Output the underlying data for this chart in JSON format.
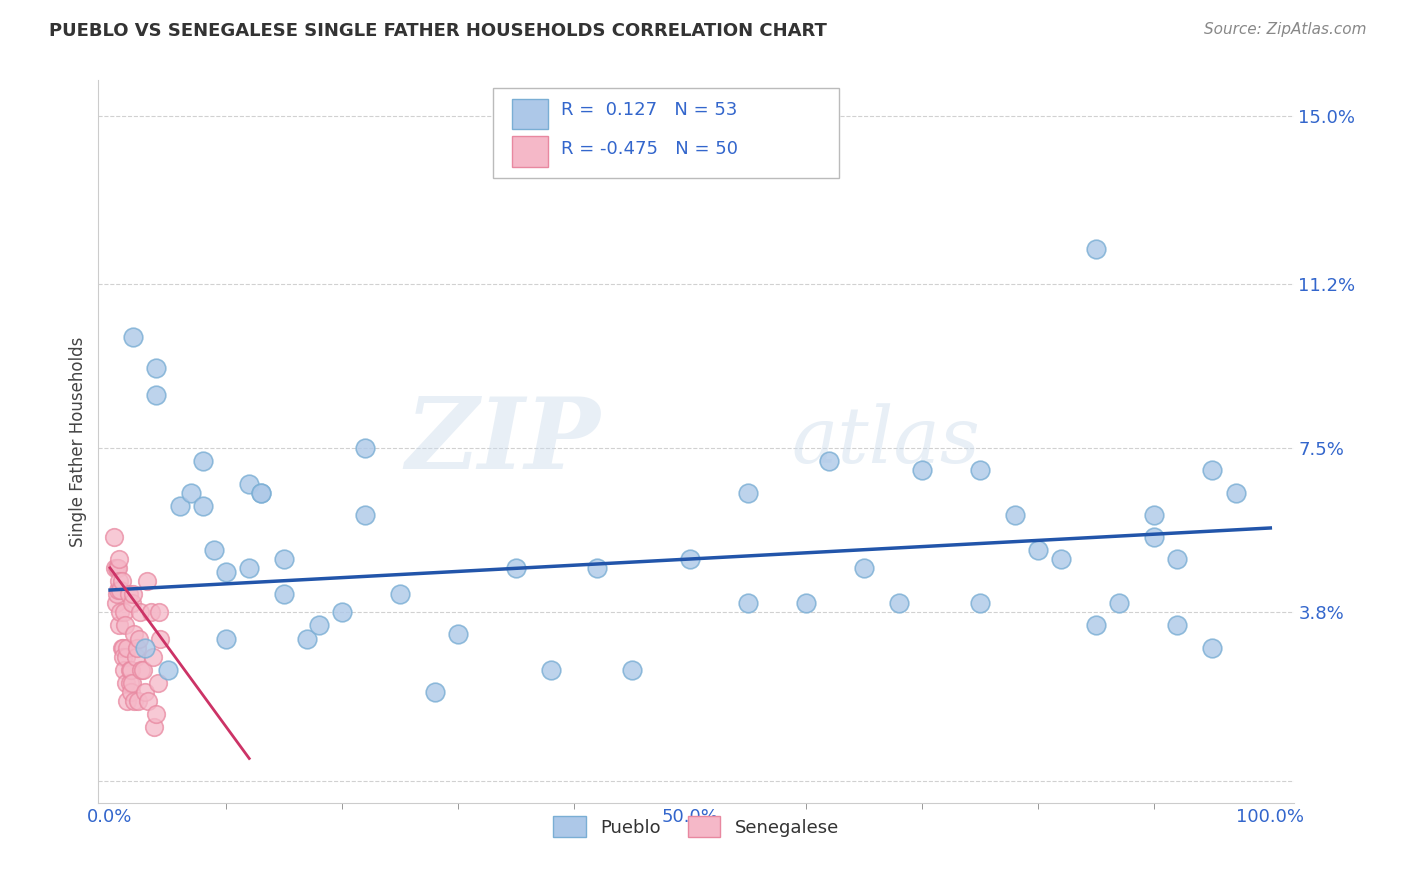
{
  "title": "PUEBLO VS SENEGALESE SINGLE FATHER HOUSEHOLDS CORRELATION CHART",
  "source": "Source: ZipAtlas.com",
  "ylabel": "Single Father Households",
  "xlim": [
    -0.01,
    1.02
  ],
  "ylim": [
    -0.005,
    0.158
  ],
  "ytick_vals": [
    0.0,
    0.038,
    0.075,
    0.112,
    0.15
  ],
  "ytick_labels": [
    "",
    "3.8%",
    "7.5%",
    "11.2%",
    "15.0%"
  ],
  "xtick_vals": [
    0.0,
    0.5,
    1.0
  ],
  "xtick_labels": [
    "0.0%",
    "50.0%",
    "100.0%"
  ],
  "pueblo_color": "#adc8e8",
  "pueblo_edge_color": "#7aaed4",
  "senegalese_color": "#f5b8c8",
  "senegalese_edge_color": "#e888a0",
  "pueblo_line_color": "#2255aa",
  "senegalese_line_color": "#cc3366",
  "axis_color": "#3366cc",
  "grid_color": "#cccccc",
  "background_color": "#ffffff",
  "watermark_zip": "ZIP",
  "watermark_atlas": "atlas",
  "r_pueblo": 0.127,
  "n_pueblo": 53,
  "r_senegalese": -0.475,
  "n_senegalese": 50,
  "pueblo_scatter_x": [
    0.02,
    0.03,
    0.04,
    0.05,
    0.06,
    0.07,
    0.08,
    0.09,
    0.1,
    0.1,
    0.12,
    0.12,
    0.13,
    0.15,
    0.15,
    0.17,
    0.18,
    0.2,
    0.22,
    0.22,
    0.25,
    0.28,
    0.3,
    0.35,
    0.38,
    0.42,
    0.45,
    0.5,
    0.55,
    0.55,
    0.6,
    0.62,
    0.65,
    0.68,
    0.7,
    0.75,
    0.75,
    0.78,
    0.8,
    0.82,
    0.85,
    0.85,
    0.87,
    0.9,
    0.9,
    0.92,
    0.92,
    0.95,
    0.95,
    0.97,
    0.08,
    0.04,
    0.13
  ],
  "pueblo_scatter_y": [
    0.1,
    0.03,
    0.087,
    0.025,
    0.062,
    0.065,
    0.072,
    0.052,
    0.047,
    0.032,
    0.067,
    0.048,
    0.065,
    0.05,
    0.042,
    0.032,
    0.035,
    0.038,
    0.075,
    0.06,
    0.042,
    0.02,
    0.033,
    0.048,
    0.025,
    0.048,
    0.025,
    0.05,
    0.065,
    0.04,
    0.04,
    0.072,
    0.048,
    0.04,
    0.07,
    0.07,
    0.04,
    0.06,
    0.052,
    0.05,
    0.12,
    0.035,
    0.04,
    0.055,
    0.06,
    0.035,
    0.05,
    0.07,
    0.03,
    0.065,
    0.062,
    0.093,
    0.065
  ],
  "senegalese_scatter_x": [
    0.003,
    0.004,
    0.005,
    0.006,
    0.006,
    0.007,
    0.007,
    0.008,
    0.008,
    0.008,
    0.009,
    0.009,
    0.01,
    0.01,
    0.011,
    0.011,
    0.012,
    0.012,
    0.013,
    0.014,
    0.014,
    0.015,
    0.015,
    0.016,
    0.017,
    0.017,
    0.018,
    0.018,
    0.019,
    0.019,
    0.02,
    0.021,
    0.021,
    0.022,
    0.023,
    0.024,
    0.025,
    0.026,
    0.027,
    0.028,
    0.03,
    0.032,
    0.033,
    0.035,
    0.037,
    0.038,
    0.04,
    0.041,
    0.042,
    0.043
  ],
  "senegalese_scatter_y": [
    0.055,
    0.048,
    0.04,
    0.048,
    0.042,
    0.048,
    0.043,
    0.05,
    0.045,
    0.035,
    0.043,
    0.038,
    0.045,
    0.03,
    0.03,
    0.028,
    0.038,
    0.025,
    0.035,
    0.028,
    0.022,
    0.03,
    0.018,
    0.042,
    0.025,
    0.022,
    0.025,
    0.02,
    0.04,
    0.022,
    0.042,
    0.033,
    0.018,
    0.028,
    0.03,
    0.018,
    0.032,
    0.038,
    0.025,
    0.025,
    0.02,
    0.045,
    0.018,
    0.038,
    0.028,
    0.012,
    0.015,
    0.022,
    0.038,
    0.032
  ],
  "pueblo_trendline_x": [
    0.0,
    1.0
  ],
  "pueblo_trendline_y": [
    0.043,
    0.057
  ],
  "senegalese_trendline_x": [
    0.0,
    0.12
  ],
  "senegalese_trendline_y": [
    0.048,
    0.005
  ]
}
